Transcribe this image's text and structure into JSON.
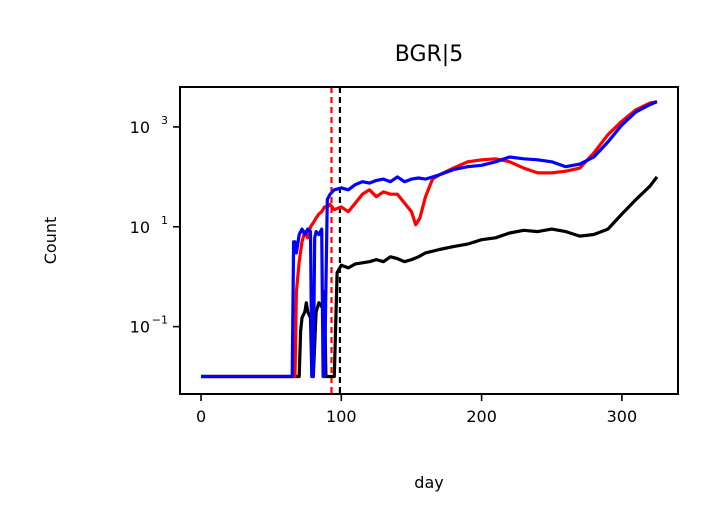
{
  "chart_data": {
    "type": "line",
    "title": "BGR|5",
    "xlabel": "day",
    "ylabel": "Count",
    "xlim": [
      -15,
      340
    ],
    "ylim_log10": [
      -2.35,
      3.8
    ],
    "yscale": "log",
    "x_ticks": [
      0,
      100,
      200,
      300
    ],
    "y_ticks": [
      {
        "base": "10",
        "exp": "3",
        "value": 1000
      },
      {
        "base": "10",
        "exp": "1",
        "value": 10
      },
      {
        "base": "10",
        "exp": "−1",
        "value": 0.1
      }
    ],
    "vlines": [
      {
        "x": 93,
        "color": "#ff0000",
        "style": "dashed"
      },
      {
        "x": 99,
        "color": "#000000",
        "style": "dashed"
      }
    ],
    "series": [
      {
        "color": "#ff0000",
        "x": [
          0,
          65,
          67,
          68,
          70,
          72,
          74,
          76,
          78,
          80,
          82,
          84,
          86,
          88,
          90,
          92,
          95,
          100,
          105,
          110,
          115,
          120,
          125,
          130,
          135,
          140,
          145,
          150,
          153,
          156,
          160,
          165,
          170,
          180,
          190,
          200,
          210,
          220,
          230,
          240,
          250,
          260,
          270,
          280,
          290,
          300,
          310,
          320,
          325
        ],
        "y": [
          0.01,
          0.01,
          0.01,
          0.5,
          2.0,
          5.0,
          8.0,
          6.0,
          10.0,
          12.0,
          15.0,
          18.0,
          20.0,
          25.0,
          25.0,
          28.0,
          22.0,
          25.0,
          20.0,
          30.0,
          45.0,
          55.0,
          40.0,
          50.0,
          45.0,
          45.0,
          30.0,
          20.0,
          11.0,
          15.0,
          40.0,
          90.0,
          110.0,
          150.0,
          200.0,
          220.0,
          230.0,
          200.0,
          150.0,
          120.0,
          120.0,
          130.0,
          150.0,
          300.0,
          700.0,
          1300.0,
          2200.0,
          3000.0,
          3200.0
        ]
      },
      {
        "color": "#0000ff",
        "x": [
          0,
          65,
          66,
          67,
          68,
          70,
          72,
          74,
          76,
          78,
          79,
          80,
          81,
          82,
          84,
          86,
          87,
          88,
          90,
          92,
          95,
          100,
          105,
          110,
          115,
          120,
          125,
          130,
          135,
          140,
          145,
          150,
          155,
          160,
          170,
          180,
          190,
          200,
          210,
          220,
          230,
          240,
          250,
          260,
          270,
          280,
          290,
          300,
          310,
          320,
          325
        ],
        "y": [
          0.01,
          0.01,
          5.0,
          5.0,
          3.0,
          7.0,
          9.0,
          7.0,
          9.0,
          8.0,
          0.01,
          0.01,
          6.0,
          8.0,
          7.0,
          9.0,
          0.01,
          0.01,
          35.0,
          45.0,
          55.0,
          60.0,
          55.0,
          70.0,
          80.0,
          75.0,
          85.0,
          90.0,
          80.0,
          100.0,
          80.0,
          90.0,
          95.0,
          90.0,
          110.0,
          140.0,
          160.0,
          170.0,
          200.0,
          250.0,
          230.0,
          220.0,
          200.0,
          160.0,
          180.0,
          250.0,
          500.0,
          1100.0,
          2000.0,
          2800.0,
          3200.0
        ]
      },
      {
        "color": "#000000",
        "x": [
          0,
          65,
          70,
          71,
          72,
          74,
          75,
          76,
          78,
          79,
          80,
          82,
          84,
          86,
          88,
          89,
          90,
          92,
          95,
          97,
          100,
          105,
          110,
          115,
          120,
          125,
          130,
          135,
          140,
          145,
          150,
          155,
          160,
          170,
          180,
          190,
          200,
          210,
          220,
          230,
          240,
          250,
          260,
          270,
          280,
          290,
          300,
          310,
          320,
          325
        ],
        "y": [
          0.01,
          0.01,
          0.01,
          0.08,
          0.15,
          0.2,
          0.3,
          0.2,
          0.15,
          0.01,
          0.01,
          0.2,
          0.3,
          0.25,
          0.5,
          0.01,
          0.01,
          0.01,
          0.01,
          1.2,
          1.7,
          1.5,
          1.8,
          1.9,
          2.0,
          2.2,
          2.0,
          2.5,
          2.3,
          2.0,
          2.2,
          2.5,
          3.0,
          3.5,
          4.0,
          4.5,
          5.5,
          6.0,
          7.5,
          8.5,
          8.0,
          9.0,
          8.0,
          6.5,
          7.0,
          9.0,
          18.0,
          35.0,
          65.0,
          100.0
        ]
      }
    ]
  }
}
